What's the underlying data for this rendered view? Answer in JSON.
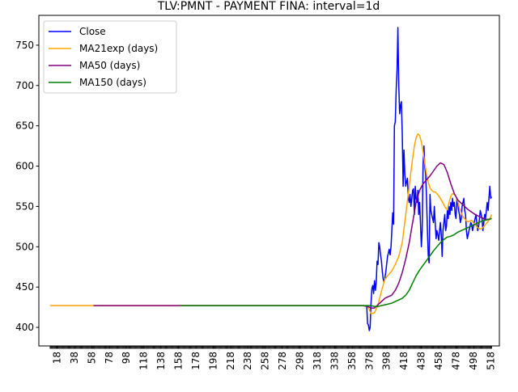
{
  "chart_data": {
    "type": "line",
    "title": "TLV:PMNT - PAYMENT FINA: interval=1d",
    "xlabel": "",
    "ylabel": "",
    "xlim": [
      -3,
      528
    ],
    "ylim": [
      377,
      787
    ],
    "x_ticks": [
      18,
      38,
      58,
      78,
      98,
      118,
      138,
      158,
      178,
      198,
      218,
      238,
      258,
      278,
      298,
      318,
      338,
      358,
      378,
      398,
      418,
      438,
      458,
      478,
      498,
      518
    ],
    "y_ticks": [
      400,
      450,
      500,
      550,
      600,
      650,
      700,
      750
    ],
    "grid": false,
    "legend_position": "top-left",
    "colors": {
      "close": "#0000ff",
      "ma21": "#ffa500",
      "ma50": "#800080",
      "ma150": "#008000"
    },
    "series": [
      {
        "name": "Close",
        "x": [
          375,
          376,
          377,
          378,
          379,
          380,
          381,
          382,
          383,
          384,
          385,
          386,
          387,
          388,
          389,
          390,
          391,
          392,
          393,
          394,
          395,
          396,
          397,
          398,
          399,
          400,
          401,
          402,
          403,
          404,
          405,
          406,
          407,
          408,
          409,
          410,
          411,
          412,
          413,
          414,
          415,
          416,
          417,
          418,
          419,
          420,
          421,
          422,
          423,
          424,
          425,
          426,
          427,
          428,
          429,
          430,
          431,
          432,
          433,
          434,
          435,
          436,
          437,
          438,
          439,
          440,
          441,
          442,
          443,
          444,
          445,
          446,
          447,
          448,
          449,
          450,
          451,
          452,
          453,
          454,
          455,
          456,
          457,
          458,
          459,
          460,
          461,
          462,
          463,
          464,
          465,
          466,
          467,
          468,
          469,
          470,
          471,
          472,
          473,
          474,
          475,
          476,
          477,
          478,
          479,
          480,
          481,
          482,
          483,
          484,
          485,
          486,
          487,
          488,
          489,
          490,
          491,
          492,
          493,
          494,
          495,
          496,
          497,
          498,
          499,
          500,
          501,
          502,
          503,
          504,
          505,
          506,
          507,
          508,
          509,
          510,
          511,
          512,
          513,
          514,
          515,
          516,
          517,
          518,
          519
        ],
        "values": [
          427,
          405,
          403,
          396,
          400,
          430,
          448,
          452,
          442,
          458,
          446,
          455,
          482,
          478,
          505,
          500,
          490,
          482,
          470,
          460,
          456,
          462,
          468,
          478,
          488,
          492,
          497,
          490,
          500,
          520,
          542,
          528,
          650,
          655,
          695,
          720,
          772,
          700,
          665,
          675,
          680,
          640,
          575,
          620,
          590,
          575,
          580,
          585,
          560,
          555,
          565,
          550,
          560,
          570,
          572,
          540,
          575,
          560,
          555,
          570,
          540,
          555,
          530,
          500,
          520,
          600,
          625,
          600,
          590,
          560,
          520,
          490,
          480,
          565,
          545,
          540,
          535,
          530,
          550,
          530,
          510,
          520,
          515,
          508,
          520,
          530,
          515,
          488,
          520,
          530,
          540,
          520,
          525,
          545,
          535,
          550,
          540,
          555,
          545,
          560,
          550,
          555,
          540,
          535,
          560,
          555,
          545,
          540,
          530,
          535,
          550,
          555,
          560,
          545,
          540,
          520,
          510,
          515,
          520,
          525,
          530,
          528,
          520,
          525,
          530,
          535,
          540,
          530,
          520,
          525,
          535,
          545,
          540,
          535,
          520,
          530,
          540,
          535,
          545,
          555,
          545,
          560,
          575,
          560,
          562
        ]
      },
      {
        "name": "MA21exp (days)",
        "x": [
          10,
          40,
          80,
          120,
          160,
          200,
          240,
          280,
          320,
          360,
          372,
          376,
          378,
          380,
          384,
          388,
          392,
          396,
          400,
          404,
          408,
          412,
          416,
          420,
          424,
          428,
          430,
          432,
          434,
          436,
          438,
          440,
          442,
          444,
          446,
          448,
          450,
          452,
          454,
          456,
          458,
          460,
          462,
          464,
          466,
          468,
          470,
          472,
          474,
          476,
          478,
          480,
          482,
          484,
          486,
          488,
          490,
          492,
          494,
          496,
          498,
          500,
          502,
          504,
          506,
          508,
          510,
          512,
          514,
          516,
          518,
          519
        ],
        "values": [
          427,
          427,
          427,
          427,
          427,
          427,
          427,
          427,
          427,
          427,
          427,
          426,
          422,
          417,
          418,
          428,
          445,
          460,
          465,
          470,
          478,
          488,
          505,
          540,
          575,
          610,
          625,
          635,
          640,
          638,
          630,
          618,
          604,
          590,
          580,
          573,
          570,
          568,
          568,
          566,
          563,
          560,
          556,
          552,
          548,
          546,
          555,
          563,
          566,
          565,
          562,
          556,
          548,
          542,
          537,
          535,
          532,
          531,
          532,
          533,
          530,
          527,
          525,
          523,
          522,
          523,
          525,
          528,
          530,
          533,
          537,
          540
        ]
      },
      {
        "name": "MA50 (days)",
        "x": [
          60,
          100,
          140,
          180,
          220,
          260,
          300,
          340,
          370,
          376,
          380,
          384,
          388,
          392,
          396,
          400,
          404,
          408,
          412,
          416,
          420,
          424,
          428,
          432,
          436,
          440,
          444,
          448,
          452,
          456,
          460,
          464,
          468,
          472,
          476,
          480,
          484,
          488,
          492,
          496,
          500,
          504,
          508,
          512,
          516,
          519
        ],
        "values": [
          427,
          427,
          427,
          427,
          427,
          427,
          427,
          427,
          427,
          426,
          424,
          424,
          428,
          432,
          436,
          438,
          440,
          446,
          455,
          468,
          485,
          505,
          530,
          555,
          570,
          578,
          583,
          588,
          594,
          600,
          604,
          602,
          592,
          578,
          566,
          558,
          554,
          550,
          546,
          543,
          540,
          538,
          536,
          534,
          534,
          535
        ]
      },
      {
        "name": "MA150 (days)",
        "x": [
          160,
          200,
          240,
          280,
          320,
          360,
          376,
          380,
          384,
          388,
          392,
          396,
          400,
          404,
          408,
          412,
          416,
          420,
          424,
          428,
          432,
          436,
          440,
          444,
          448,
          452,
          456,
          460,
          464,
          468,
          472,
          476,
          480,
          484,
          488,
          492,
          496,
          500,
          504,
          508,
          512,
          516,
          519
        ],
        "values": [
          427,
          427,
          427,
          427,
          427,
          427,
          427,
          427,
          426,
          426,
          427,
          428,
          429,
          430,
          432,
          434,
          436,
          440,
          446,
          455,
          464,
          471,
          477,
          483,
          489,
          495,
          500,
          505,
          509,
          512,
          513,
          515,
          518,
          520,
          522,
          524,
          526,
          528,
          530,
          532,
          533,
          534,
          535
        ]
      }
    ]
  }
}
